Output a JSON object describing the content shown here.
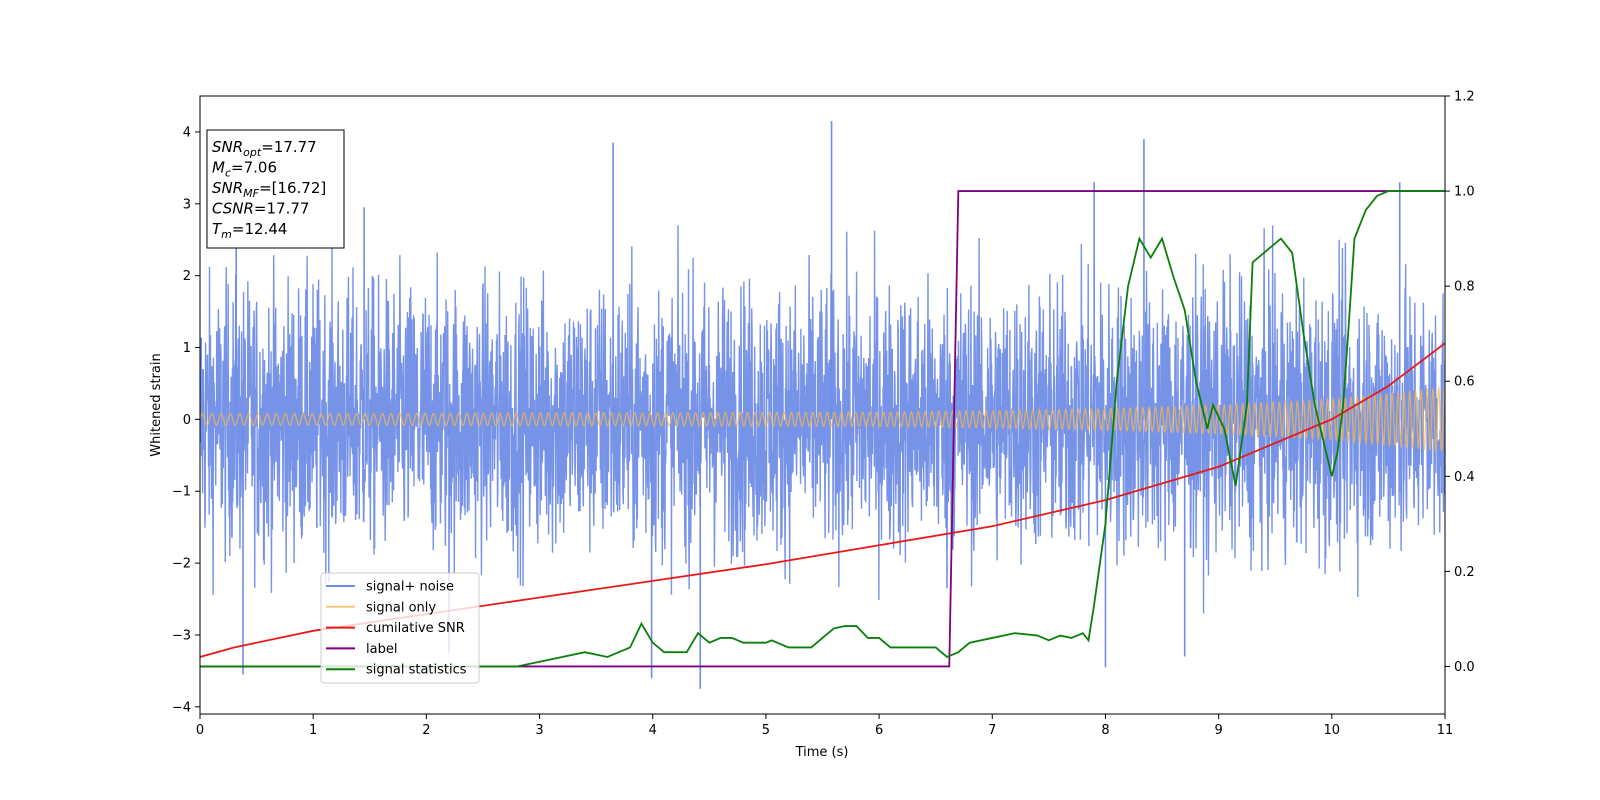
{
  "chart_data": {
    "type": "line",
    "xlabel": "Time (s)",
    "ylabel_left": "Whitened strain",
    "ylabel_right": "",
    "xlim": [
      0,
      11
    ],
    "ylim_left": [
      -4.1,
      4.5
    ],
    "ylim_right": [
      -0.1,
      1.2
    ],
    "x_ticks": [
      0,
      1,
      2,
      3,
      4,
      5,
      6,
      7,
      8,
      9,
      10,
      11
    ],
    "x_tick_labels": [
      "0",
      "1",
      "2",
      "3",
      "4",
      "5",
      "6",
      "7",
      "8",
      "9",
      "10",
      "11"
    ],
    "y_left_ticks": [
      -4,
      -3,
      -2,
      -1,
      0,
      1,
      2,
      3,
      4
    ],
    "y_left_tick_labels": [
      "−4",
      "−3",
      "−2",
      "−1",
      "0",
      "1",
      "2",
      "3",
      "4"
    ],
    "y_right_ticks": [
      0.0,
      0.2,
      0.4,
      0.6,
      0.8,
      1.0,
      1.2
    ],
    "y_right_tick_labels": [
      "0.0",
      "0.2",
      "0.4",
      "0.6",
      "0.8",
      "1.0",
      "1.2"
    ],
    "grid": false,
    "legend_placement": "lower-left",
    "info_box": {
      "lines": [
        {
          "main": "SNR",
          "sub": "opt",
          "value": "=17.77"
        },
        {
          "main": "M",
          "sub": "c",
          "value": "=7.06"
        },
        {
          "main": "SNR",
          "sub": "MF",
          "value": "=[16.72]"
        },
        {
          "main": "CSNR",
          "sub": "",
          "value": "=17.77"
        },
        {
          "main": "T",
          "sub": "m",
          "value": "=12.44"
        }
      ]
    },
    "series": [
      {
        "name": "signal+ noise",
        "axis": "left",
        "color": "#6f8de6",
        "kind": "noise",
        "envelope": [
          -2.0,
          2.0
        ],
        "x": [
          0.0,
          0.32,
          0.38,
          1.45,
          2.2,
          3.65,
          3.99,
          4.42,
          5.58,
          6.6,
          7.9,
          8.0,
          8.34,
          8.7,
          10.6
        ],
        "y": [
          0.0,
          2.9,
          -3.55,
          2.95,
          -3.25,
          3.85,
          -3.6,
          -3.75,
          4.15,
          -2.35,
          3.3,
          -3.45,
          3.9,
          -3.3,
          3.3
        ]
      },
      {
        "name": "signal only",
        "axis": "left",
        "color": "#f5b54f",
        "kind": "chirp",
        "x": [
          0,
          1,
          2,
          3,
          4,
          5,
          6,
          7,
          8,
          9,
          10,
          11
        ],
        "y": [
          0.08,
          0.08,
          0.085,
          0.09,
          0.09,
          0.095,
          0.1,
          0.12,
          0.15,
          0.2,
          0.28,
          0.45
        ]
      },
      {
        "name": "cumilative SNR",
        "axis": "right",
        "color": "#e8191a",
        "x": [
          0,
          0.3,
          1,
          2,
          3,
          4,
          5,
          6,
          7,
          8,
          9,
          10,
          10.5,
          11
        ],
        "y": [
          0.02,
          0.04,
          0.075,
          0.11,
          0.145,
          0.18,
          0.215,
          0.255,
          0.295,
          0.35,
          0.42,
          0.52,
          0.59,
          0.68
        ]
      },
      {
        "name": "label",
        "axis": "right",
        "color": "#800080",
        "x": [
          0,
          6.62,
          6.7,
          11
        ],
        "y": [
          0.0,
          0.0,
          1.0,
          1.0
        ]
      },
      {
        "name": "signal statistics",
        "axis": "right",
        "color": "#0b7f0b",
        "x": [
          0,
          0.5,
          1,
          1.5,
          2,
          2.5,
          2.8,
          3.0,
          3.2,
          3.4,
          3.6,
          3.8,
          3.9,
          4.0,
          4.1,
          4.2,
          4.3,
          4.4,
          4.5,
          4.6,
          4.7,
          4.8,
          5.0,
          5.05,
          5.2,
          5.4,
          5.5,
          5.6,
          5.7,
          5.8,
          5.9,
          6.0,
          6.1,
          6.3,
          6.5,
          6.6,
          6.7,
          6.8,
          7.0,
          7.2,
          7.4,
          7.5,
          7.6,
          7.7,
          7.8,
          7.85,
          7.9,
          8.0,
          8.1,
          8.2,
          8.3,
          8.4,
          8.5,
          8.6,
          8.7,
          8.8,
          8.9,
          8.95,
          9.05,
          9.15,
          9.25,
          9.3,
          9.45,
          9.55,
          9.65,
          9.75,
          9.85,
          9.95,
          10.0,
          10.05,
          10.1,
          10.15,
          10.2,
          10.3,
          10.4,
          10.5,
          10.7,
          10.9,
          11
        ],
        "y": [
          0.0,
          0.0,
          0.0,
          0.0,
          0.0,
          0.0,
          0.0,
          0.01,
          0.02,
          0.03,
          0.02,
          0.04,
          0.09,
          0.05,
          0.03,
          0.03,
          0.03,
          0.07,
          0.05,
          0.06,
          0.06,
          0.05,
          0.05,
          0.055,
          0.04,
          0.04,
          0.06,
          0.08,
          0.085,
          0.085,
          0.06,
          0.06,
          0.04,
          0.04,
          0.04,
          0.02,
          0.03,
          0.05,
          0.06,
          0.07,
          0.065,
          0.055,
          0.065,
          0.06,
          0.07,
          0.055,
          0.13,
          0.3,
          0.6,
          0.8,
          0.9,
          0.86,
          0.9,
          0.82,
          0.75,
          0.6,
          0.5,
          0.55,
          0.5,
          0.38,
          0.55,
          0.85,
          0.88,
          0.9,
          0.87,
          0.7,
          0.55,
          0.45,
          0.4,
          0.45,
          0.55,
          0.72,
          0.9,
          0.96,
          0.99,
          1.0,
          1.0,
          1.0,
          1.0
        ]
      }
    ]
  }
}
